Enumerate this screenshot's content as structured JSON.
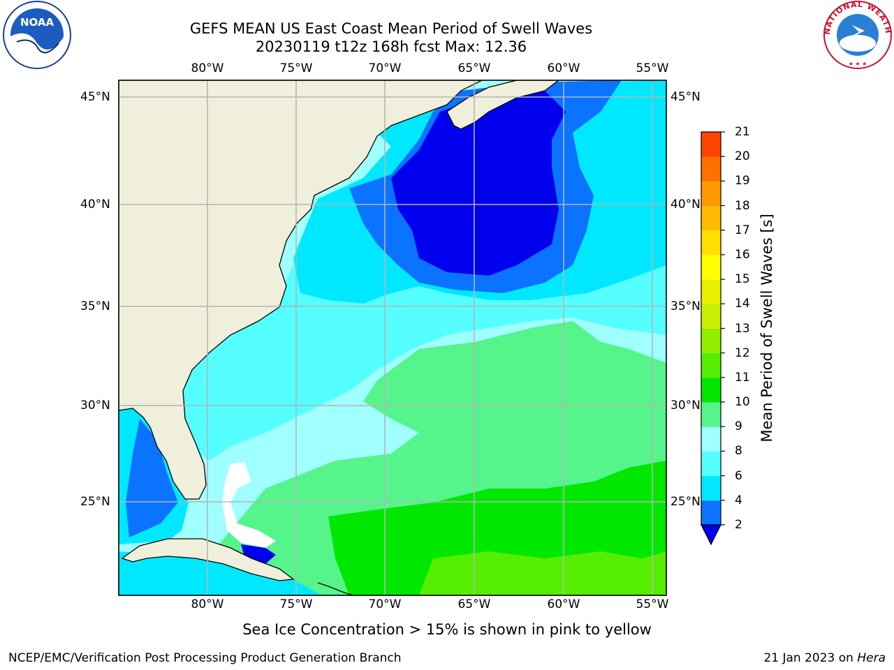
{
  "title": {
    "line1": "GEFS MEAN US East Coast Mean Period of Swell Waves",
    "line2": "20230119 t12z 168h fcst   Max: 12.36"
  },
  "logos": {
    "left": {
      "icon": "noaa-logo",
      "text": "NOAA"
    },
    "right": {
      "icon": "nws-logo",
      "text": "NATIONAL WEATHER SERVICE"
    }
  },
  "map": {
    "lon_ticks": [
      "80°W",
      "75°W",
      "70°W",
      "65°W",
      "60°W",
      "55°W"
    ],
    "lat_ticks": [
      "45°N",
      "40°N",
      "35°N",
      "30°N",
      "25°N"
    ],
    "extent": {
      "lon": [
        -85,
        -54
      ],
      "lat": [
        20.5,
        46
      ]
    }
  },
  "colorbar": {
    "title": "Mean Period of Swell Waves [s]",
    "labels": [
      "2",
      "4",
      "6",
      "8",
      "9",
      "10",
      "11",
      "12",
      "13",
      "14",
      "15",
      "16",
      "17",
      "18",
      "19",
      "20",
      "21"
    ],
    "colors": [
      "#0a73ff",
      "#00e8ff",
      "#55ffff",
      "#a0ffff",
      "#55f58c",
      "#00e800",
      "#55ee00",
      "#90ee00",
      "#c8f000",
      "#e8f000",
      "#ffff00",
      "#ffe000",
      "#ffbb00",
      "#ff9900",
      "#ff7000",
      "#ff4400",
      "#ff1a00",
      "#ff0000"
    ],
    "extend_color": "#0000ee"
  },
  "note": "Sea Ice Concentration > 15% is shown in pink to yellow",
  "footer": {
    "left": "NCEP/EMC/Verification Post Processing Product Generation Branch",
    "right_date": "21 Jan 2023 on ",
    "right_host": "Hera"
  }
}
